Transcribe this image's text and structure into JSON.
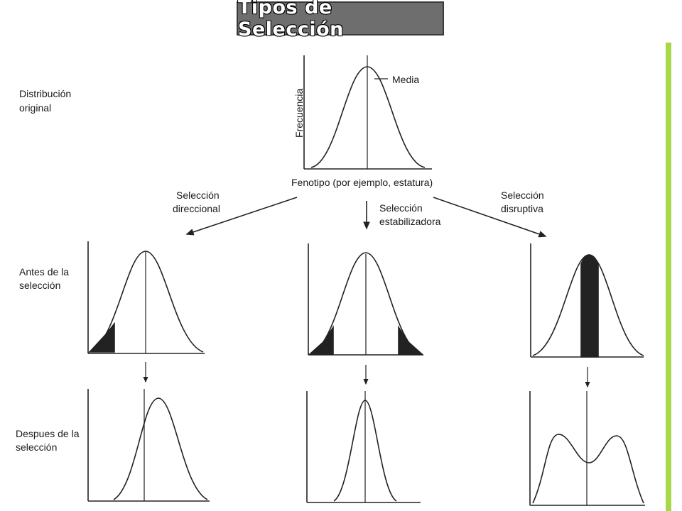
{
  "title": "Tipos de Selección",
  "accent_color": "#a8d84a",
  "labels": {
    "original_l1": "Distribución",
    "original_l2": "original",
    "media": "Media",
    "frecuencia": "Frecuencia",
    "fenotipo": "Fenotipo (por ejemplo, estatura)",
    "direccional_l1": "Selección",
    "direccional_l2": "direccional",
    "estabilizadora_l1": "Selección",
    "estabilizadora_l2": "estabilizadora",
    "disruptiva_l1": "Selección",
    "disruptiva_l2": "disruptiva",
    "antes_l1": "Antes de la",
    "antes_l2": "selección",
    "despues_l1": "Despues de la",
    "despues_l2": "selección"
  }
}
